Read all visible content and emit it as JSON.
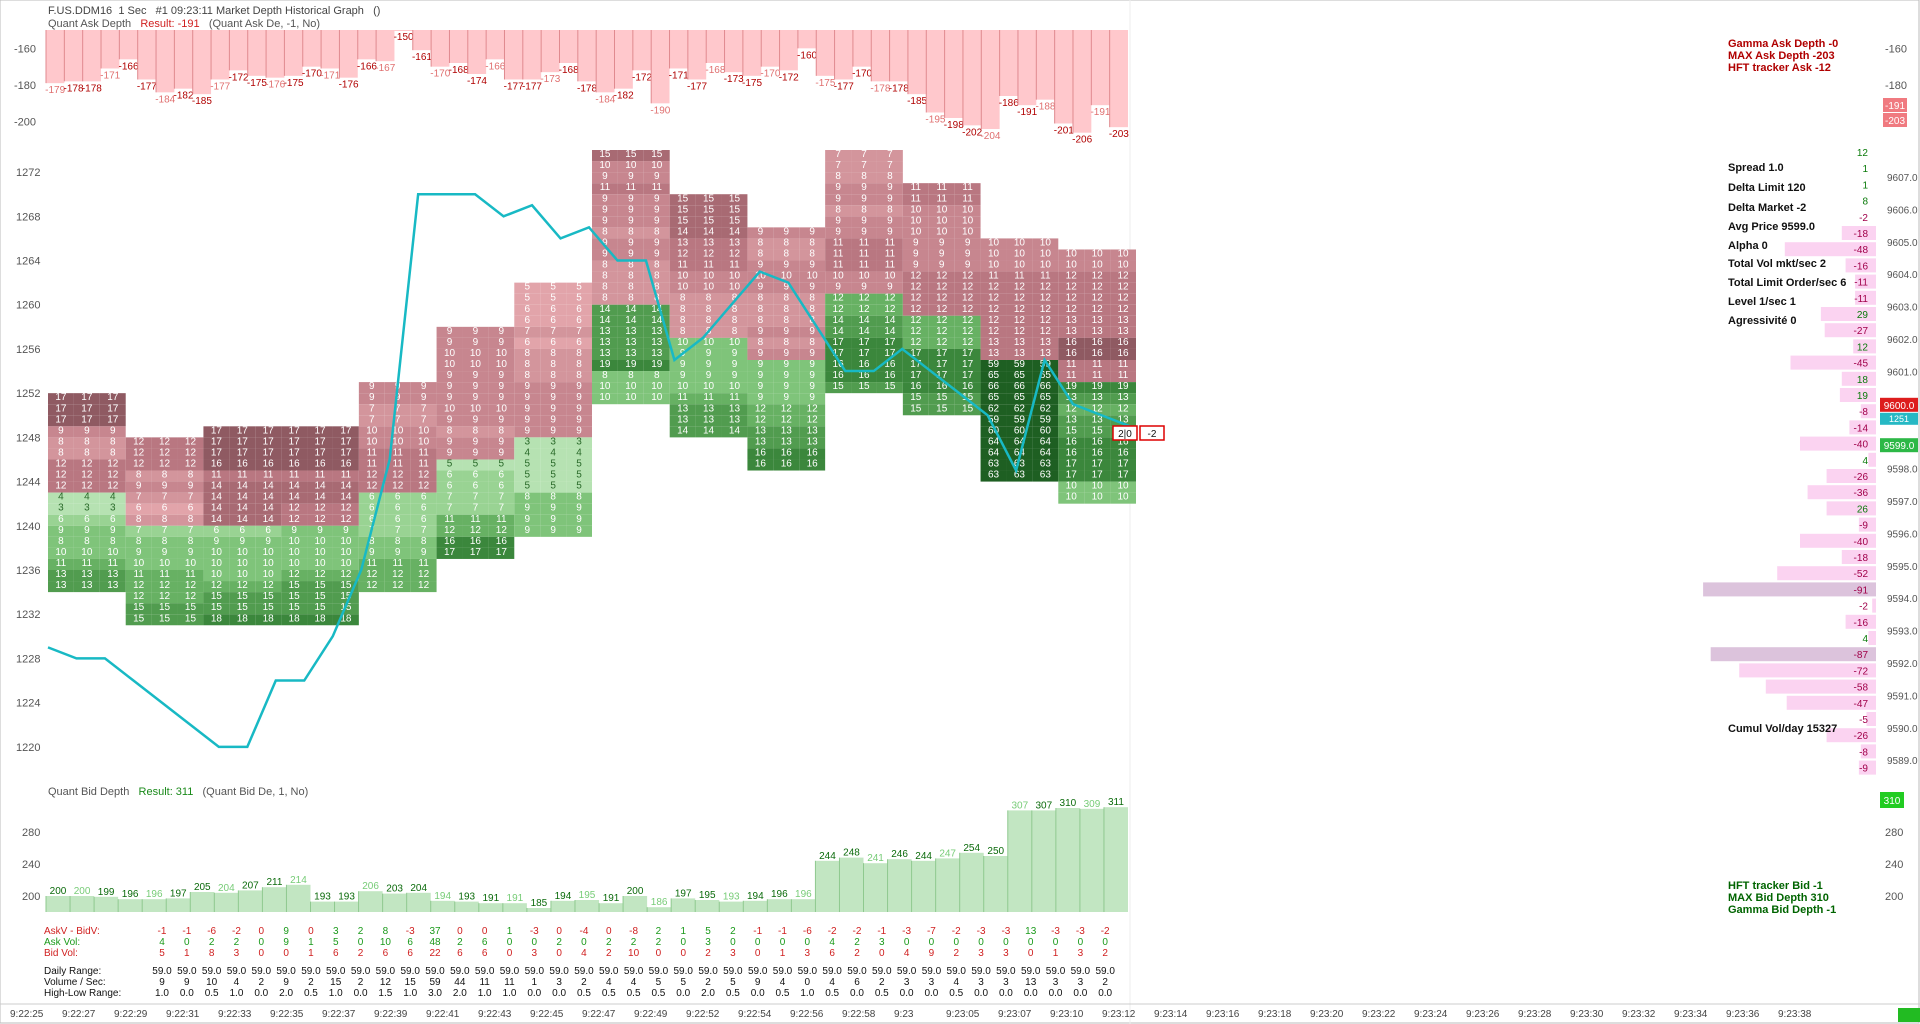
{
  "header": {
    "symbol": "F.US.DDM16",
    "interval": "1 Sec",
    "window": "#1 09:23:11 Market Depth Historical Graph",
    "extra": "()"
  },
  "ask_depth": {
    "name": "Quant Ask Depth",
    "result_label": "Result: -191",
    "params": "(Quant Ask De, -1, No)",
    "y_ticks": [
      -160,
      -180,
      -200
    ],
    "values": [
      -179,
      -178,
      -178,
      -171,
      -166,
      -177,
      -184,
      -182,
      -185,
      -177,
      -172,
      -175,
      -176,
      -175,
      -170,
      -171,
      -176,
      -166,
      -167,
      -150,
      -161,
      -170,
      -168,
      -174,
      -166,
      -177,
      -177,
      -173,
      -168,
      -178,
      -184,
      -182,
      -172,
      -190,
      -171,
      -177,
      -168,
      -173,
      -175,
      -170,
      -172,
      -160,
      -175,
      -177,
      -170,
      -178,
      -178,
      -185,
      -195,
      -198,
      -202,
      -204,
      -186,
      -191,
      -188,
      -201,
      -206,
      -191,
      -203
    ],
    "info": [
      "Gamma Ask Depth -0",
      "MAX Ask Depth -203",
      "HFT tracker Ask  -12"
    ],
    "right_badges": [
      "-191",
      "-203"
    ],
    "colors": {
      "bar": "#ffc8cc",
      "stroke": "#e08a8f",
      "text": "#b00000"
    }
  },
  "bid_depth": {
    "name": "Quant Bid Depth",
    "result_label": "Result: 311",
    "params": "(Quant Bid De, 1, No)",
    "y_ticks": [
      280,
      240,
      200
    ],
    "values": [
      200,
      200,
      199,
      196,
      196,
      197,
      205,
      204,
      207,
      211,
      214,
      193,
      193,
      206,
      203,
      204,
      194,
      193,
      191,
      191,
      185,
      194,
      195,
      191,
      200,
      186,
      197,
      195,
      193,
      194,
      196,
      196,
      244,
      248,
      241,
      246,
      244,
      247,
      254,
      250,
      307,
      307,
      310,
      309,
      311
    ],
    "info": [
      "HFT tracker Bid -1",
      "MAX Bid Depth 310",
      "Gamma Bid Depth -1"
    ],
    "right_badge": "310",
    "colors": {
      "bar": "#c2e6c2",
      "stroke": "#8fc98f",
      "text": "#0a6a0a"
    }
  },
  "chart_data": {
    "type": "heatmap",
    "title": "F.US.DDM16 1 Sec #1 09:23:11 Market Depth Historical Graph",
    "y_ticks_left": [
      1272,
      1268,
      1264,
      1260,
      1256,
      1252,
      1248,
      1244,
      1240,
      1236,
      1232,
      1228,
      1224,
      1220
    ],
    "x_ticks": [
      "9:22:25",
      "9:22:27",
      "9:22:29",
      "9:22:31",
      "9:22:33",
      "9:22:35",
      "9:22:37",
      "9:22:39",
      "9:22:41",
      "9:22:43",
      "9:22:45",
      "9:22:47",
      "9:22:49",
      "9:22:52",
      "9:22:54",
      "9:22:56",
      "9:22:58",
      "9:23",
      "9:23:05",
      "9:23:07",
      "9:23:10",
      "9:23:12",
      "9:23:14",
      "9:23:16",
      "9:23:18",
      "9:23:20",
      "9:23:22",
      "9:23:24",
      "9:23:26",
      "9:23:28",
      "9:23:30",
      "9:23:32",
      "9:23:34",
      "9:23:36",
      "9:23:38"
    ],
    "price_line": [
      1229,
      1228,
      1228,
      1226,
      1224,
      1222,
      1220,
      1220,
      1226,
      1226,
      1230,
      1236,
      1246,
      1270,
      1270,
      1270,
      1268,
      1269,
      1266,
      1267,
      1264,
      1264,
      1255,
      1257,
      1260,
      1263,
      1262,
      1258,
      1254,
      1254,
      1256,
      1254,
      1252,
      1250,
      1245,
      1255,
      1251,
      1250,
      1249
    ],
    "columns": [
      {
        "top": 1252,
        "ask": [
          17,
          17,
          17,
          9,
          8,
          8,
          12,
          12,
          12
        ],
        "bid": [
          4,
          3,
          6,
          9,
          8,
          10,
          11,
          13,
          13
        ]
      },
      {
        "top": 1248,
        "ask": [
          12,
          12,
          12,
          8,
          9,
          7,
          6,
          8
        ],
        "bid": [
          7,
          8,
          9,
          10,
          11,
          12,
          12,
          15,
          15
        ]
      },
      {
        "top": 1249,
        "ask": [
          17,
          17,
          17,
          16,
          11,
          14,
          14,
          14,
          14
        ],
        "bid": [
          6,
          9,
          10,
          10,
          10,
          12,
          15,
          15,
          18
        ]
      },
      {
        "top": 1249,
        "ask": [
          17,
          17,
          17,
          16,
          11,
          14,
          14,
          12,
          12
        ],
        "bid": [
          9,
          10,
          10,
          10,
          12,
          15,
          15,
          15,
          18
        ]
      },
      {
        "top": 1253,
        "ask": [
          9,
          9,
          7,
          7,
          10,
          10,
          11,
          11,
          12,
          12
        ],
        "bid": [
          6,
          6,
          6,
          7,
          8,
          9,
          11,
          12,
          12
        ]
      },
      {
        "top": 1258,
        "ask": [
          9,
          9,
          10,
          10,
          9,
          9,
          9,
          10,
          9,
          8,
          9,
          9
        ],
        "bid": [
          5,
          6,
          6,
          7,
          7,
          11,
          12,
          16,
          17
        ]
      },
      {
        "top": 1262,
        "ask": [
          5,
          5,
          6,
          6,
          7,
          6,
          8,
          8,
          8,
          9,
          9,
          9,
          9,
          9
        ],
        "bid": [
          3,
          4,
          5,
          5,
          5,
          8,
          9,
          9,
          9
        ]
      },
      {
        "top": 1274,
        "ask": [
          15,
          10,
          9,
          11,
          9,
          9,
          9,
          8,
          9,
          9,
          8,
          8,
          8,
          8
        ],
        "bid": [
          14,
          14,
          13,
          13,
          13,
          19,
          8,
          10,
          10
        ]
      },
      {
        "top": 1270,
        "ask": [
          15,
          15,
          15,
          14,
          13,
          12,
          11,
          10,
          10,
          8,
          8,
          8,
          8
        ],
        "bid": [
          10,
          9,
          9,
          9,
          10,
          11,
          13,
          13,
          14
        ]
      },
      {
        "top": 1267,
        "ask": [
          9,
          8,
          8,
          9,
          10,
          9,
          8,
          8,
          8,
          9,
          8,
          9
        ],
        "bid": [
          9,
          9,
          9,
          9,
          12,
          12,
          13,
          13,
          16,
          16
        ]
      },
      {
        "top": 1274,
        "ask": [
          7,
          7,
          8,
          9,
          9,
          8,
          9,
          9,
          11,
          11,
          11,
          10,
          9
        ],
        "bid": [
          12,
          12,
          14,
          14,
          17,
          17,
          16,
          16,
          15
        ]
      },
      {
        "top": 1271,
        "ask": [
          11,
          11,
          10,
          10,
          10,
          9,
          9,
          9,
          12,
          12,
          12,
          12
        ],
        "bid": [
          12,
          12,
          12,
          17,
          17,
          17,
          16,
          15,
          15
        ]
      },
      {
        "top": 1266,
        "ask": [
          10,
          10,
          10,
          11,
          12,
          12,
          12,
          12,
          12,
          13,
          13
        ],
        "bid": [
          59,
          65,
          66,
          65,
          62,
          59,
          60,
          64,
          64,
          63,
          63
        ]
      },
      {
        "top": 1265,
        "ask": [
          10,
          10,
          12,
          12,
          12,
          12,
          13,
          13,
          16,
          16,
          11,
          11
        ],
        "bid": [
          19,
          13,
          12,
          13,
          15,
          16,
          16,
          17,
          17,
          10,
          10
        ]
      }
    ],
    "ask_color": "#b07a80",
    "bid_color": "#2c7a3c",
    "price_line_color": "#18b9c4"
  },
  "right_panel": {
    "stats": [
      "Spread 1.0",
      "Delta Limit 120",
      "Delta Market -2",
      "Avg Price 9599.0",
      "Alpha 0",
      "Total Vol mkt/sec 2",
      "Total Limit Order/sec 6",
      "Level 1/sec 1",
      "Agressivité 0"
    ],
    "cumul": "Cumul Vol/day 15327",
    "prices": [
      "9607.0",
      "9606.0",
      "9605.0",
      "9604.0",
      "9603.0",
      "9602.0",
      "9601.0",
      "9600.0",
      "9599.0",
      "9598.0",
      "9597.0",
      "9596.0",
      "9595.0",
      "9594.0",
      "9593.0",
      "9592.0",
      "9591.0",
      "9590.0",
      "9589.0"
    ],
    "ladder": [
      12,
      1,
      1,
      8,
      -2,
      -18,
      -48,
      -16,
      -11,
      -11,
      29,
      -27,
      12,
      -45,
      18,
      19,
      -8,
      -14,
      -40,
      4,
      -26,
      -36,
      26,
      -9,
      -40,
      -18,
      -52,
      -91,
      -2,
      -16,
      4,
      -87,
      -72,
      -58,
      -47,
      -5,
      -26,
      -8,
      -9
    ],
    "ladder_bar_widths": [
      0,
      0,
      0,
      0,
      0,
      18,
      48,
      16,
      11,
      11,
      29,
      27,
      12,
      45,
      18,
      19,
      8,
      14,
      40,
      4,
      26,
      36,
      26,
      9,
      40,
      18,
      52,
      91,
      2,
      16,
      4,
      87,
      72,
      58,
      47,
      5,
      26,
      8,
      9
    ],
    "ask_price_badge": "9600.0",
    "bid_price_badge": "9599.0",
    "bid_size_badge": "1251",
    "last_delta_box": "-2",
    "last_bidask_box": "2|0"
  },
  "bottom_table": {
    "row_labels": [
      "AskV - BidV:",
      "Ask Vol:",
      "Bid Vol:",
      "Daily Range:",
      "Volume / Sec:",
      "High-Low Range:"
    ],
    "askv_bidv": [
      -1,
      -1,
      -6,
      -2,
      0,
      9,
      0,
      3,
      2,
      8,
      -3,
      37,
      0,
      0,
      1,
      -3,
      0,
      -4,
      0,
      -8,
      2,
      1,
      5,
      2,
      -1,
      -1,
      -6,
      -2,
      -2,
      -1,
      -3,
      -7,
      -2,
      -3,
      -3,
      13,
      -3,
      -3,
      -2
    ],
    "ask_vol": [
      4,
      0,
      2,
      2,
      0,
      9,
      1,
      5,
      0,
      10,
      6,
      48,
      2,
      6,
      0,
      0,
      2,
      0,
      2,
      2,
      2,
      0,
      3,
      0,
      0,
      0,
      0,
      4,
      2,
      3,
      0,
      0,
      0,
      0,
      0,
      0,
      0,
      0,
      0
    ],
    "bid_vol": [
      5,
      1,
      8,
      3,
      0,
      0,
      1,
      6,
      2,
      6,
      6,
      22,
      6,
      6,
      0,
      3,
      0,
      4,
      2,
      10,
      0,
      0,
      2,
      3,
      0,
      1,
      3,
      6,
      2,
      0,
      4,
      9,
      2,
      3,
      3,
      0,
      1,
      3,
      2
    ],
    "daily_range": "59.0",
    "volume_sec": [
      9,
      9,
      10,
      4,
      2,
      9,
      2,
      15,
      2,
      12,
      15,
      59,
      44,
      11,
      11,
      1,
      3,
      2,
      4,
      4,
      5,
      5,
      2,
      5,
      9,
      4,
      0,
      4,
      6,
      2,
      3,
      3,
      4,
      3,
      3,
      13,
      3,
      3,
      2
    ],
    "high_low": [
      "1.0",
      "0.0",
      "0.5",
      "1.0",
      "0.0",
      "2.0",
      "0.5",
      "1.0",
      "0.0",
      "1.5",
      "1.0",
      "3.0",
      "2.0",
      "1.0",
      "1.0",
      "0.0",
      "0.0",
      "0.5",
      "0.5",
      "0.5",
      "0.5",
      "0.0",
      "2.0",
      "0.5",
      "0.0",
      "0.5",
      "1.0",
      "0.5",
      "0.0",
      "0.5",
      "0.0",
      "0.0",
      "0.5",
      "0.0",
      "0.0",
      "0.0",
      "0.0",
      "0.0",
      "0.0"
    ]
  },
  "status": {
    "bottom_right_color": "#22bb22"
  }
}
